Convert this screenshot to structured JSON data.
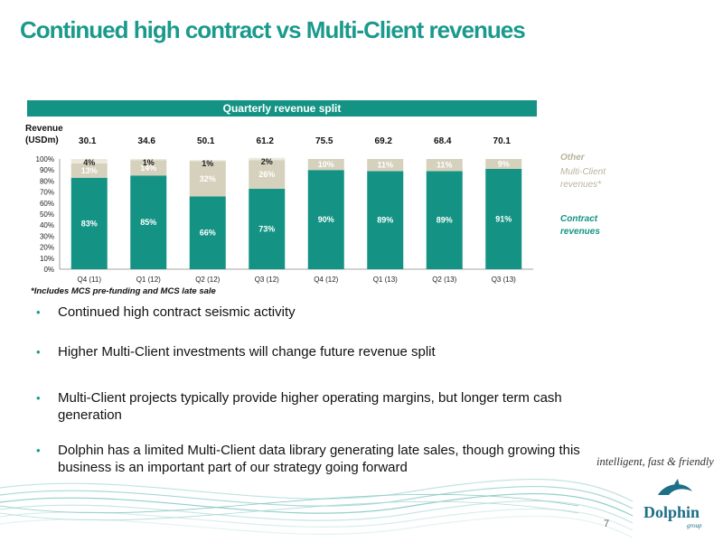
{
  "slide": {
    "title": "Continued high contract vs Multi-Client revenues",
    "page_number": "7",
    "tagline": "intelligent, fast & friendly",
    "logo_text": "Dolphin",
    "logo_sub": "group"
  },
  "chart_header": "Quarterly revenue split",
  "revenue_label_line1": "Revenue",
  "revenue_label_line2": "(USDm)",
  "footnote": "*Includes MCS pre-funding and MCS late sale",
  "legend": {
    "other": "Other",
    "multi_client": "Multi-Client revenues*",
    "contract": "Contract revenues"
  },
  "colors": {
    "contract": "#149385",
    "multi_client": "#d6d1bd",
    "other": "#ece9dc",
    "title": "#1a9a8c"
  },
  "chart_data": {
    "type": "bar",
    "stacked": true,
    "title": "Quarterly revenue split",
    "categories": [
      "Q4 (11)",
      "Q1 (12)",
      "Q2 (12)",
      "Q3 (12)",
      "Q4 (12)",
      "Q1 (13)",
      "Q2 (13)",
      "Q3 (13)"
    ],
    "revenue_usdm": [
      "30.1",
      "34.6",
      "50.1",
      "61.2",
      "75.5",
      "69.2",
      "68.4",
      "70.1"
    ],
    "series": [
      {
        "name": "Contract revenues",
        "values": [
          83,
          85,
          66,
          73,
          90,
          89,
          89,
          91
        ]
      },
      {
        "name": "Multi-Client revenues*",
        "values": [
          13,
          14,
          32,
          26,
          10,
          11,
          11,
          9
        ]
      },
      {
        "name": "Other",
        "values": [
          4,
          1,
          1,
          2,
          0,
          0,
          0,
          0
        ]
      }
    ],
    "labels": {
      "contract": [
        "83%",
        "85%",
        "66%",
        "73%",
        "90%",
        "89%",
        "89%",
        "91%"
      ],
      "multi_client": [
        "13%",
        "14%",
        "32%",
        "26%",
        "10%",
        "11%",
        "11%",
        "9%"
      ],
      "other": [
        "4%",
        "1%",
        "1%",
        "2%",
        "",
        "",
        "",
        ""
      ]
    },
    "y_ticks": [
      "0%",
      "10%",
      "20%",
      "30%",
      "40%",
      "50%",
      "60%",
      "70%",
      "80%",
      "90%",
      "100%"
    ],
    "ylim": [
      0,
      100
    ]
  },
  "bullets": [
    "Continued high contract seismic  activity",
    "Higher Multi-Client investments will change future revenue split",
    "Multi-Client projects typically provide higher operating margins, but longer term cash generation",
    "Dolphin has a limited Multi-Client data library  generating late sales, though growing this business is an important part of our strategy going forward"
  ]
}
